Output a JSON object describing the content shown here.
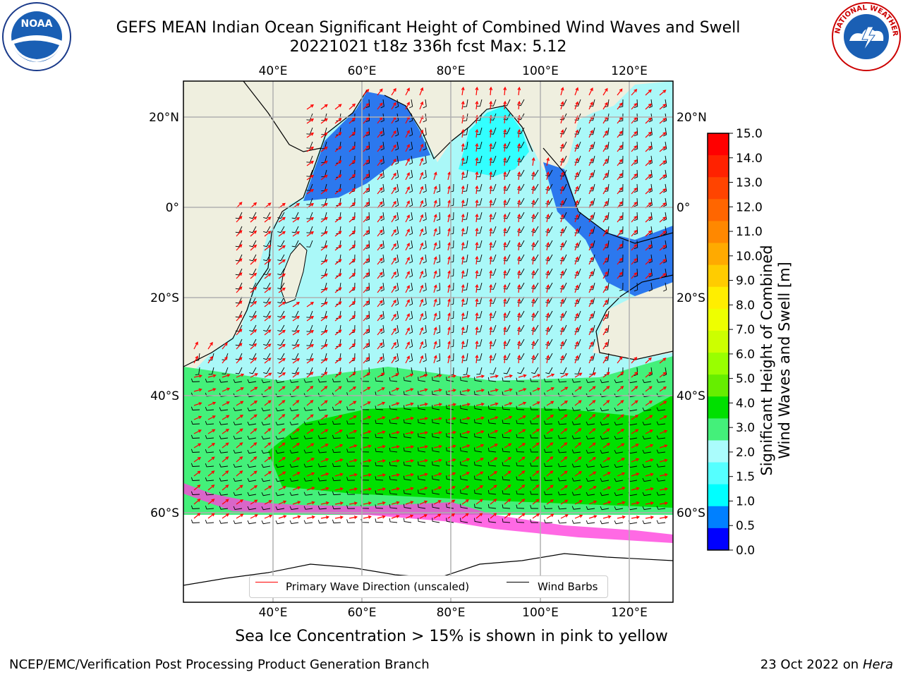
{
  "title": {
    "line1": "GEFS MEAN Indian Ocean Significant Height of Combined Wind Waves and Swell",
    "line2": "20221021 t18z 336h fcst   Max: 5.12"
  },
  "logos": {
    "left": {
      "name": "NOAA",
      "text": "NOAA"
    },
    "right": {
      "name": "National Weather Service",
      "ring_text": "NATIONAL WEATHER SERVICE"
    }
  },
  "map": {
    "lon_ticks_top": [
      "40°E",
      "60°E",
      "80°E",
      "100°E",
      "120°E"
    ],
    "lon_ticks_bottom": [
      "40°E",
      "60°E",
      "80°E",
      "100°E",
      "120°E"
    ],
    "lat_ticks_left": [
      "20°N",
      "0°",
      "20°S",
      "40°S",
      "60°S"
    ],
    "lat_ticks_right": [
      "20°N",
      "0°",
      "20°S",
      "40°S",
      "60°S"
    ],
    "colors": {
      "land": "#efefdf",
      "ocean_low": "#aaf8f8",
      "wave_arrow": "#ff0000",
      "wind_barb": "#000000"
    }
  },
  "colorbar": {
    "ticks": [
      "15.0",
      "14.0",
      "13.0",
      "12.0",
      "11.0",
      "10.0",
      "9.0",
      "8.0",
      "7.0",
      "6.0",
      "5.0",
      "4.0",
      "3.0",
      "2.0",
      "1.5",
      "1.0",
      "0.5",
      "0.0"
    ],
    "colors_top_to_bottom": [
      "#ff0000",
      "#ff2200",
      "#ff4400",
      "#ff6600",
      "#ff8800",
      "#ffaa00",
      "#ffcc00",
      "#ffee00",
      "#eeff00",
      "#ccff00",
      "#99ff00",
      "#66ee00",
      "#00e000",
      "#44f07a",
      "#aafcfc",
      "#55ffff",
      "#00ffff",
      "#0080ff",
      "#0000ff"
    ],
    "label_line1": "Significant Height of Combined",
    "label_line2": "Wind Waves and Swell [m]"
  },
  "legend": {
    "wave": "Primary Wave Direction (unscaled)",
    "wind": "Wind Barbs"
  },
  "caption": "Sea Ice Concentration > 15% is shown in pink to yellow",
  "footer": {
    "left": "NCEP/EMC/Verification Post Processing Product Generation Branch",
    "right_prefix": "23 Oct 2022 on ",
    "right_italic": "Hera"
  }
}
